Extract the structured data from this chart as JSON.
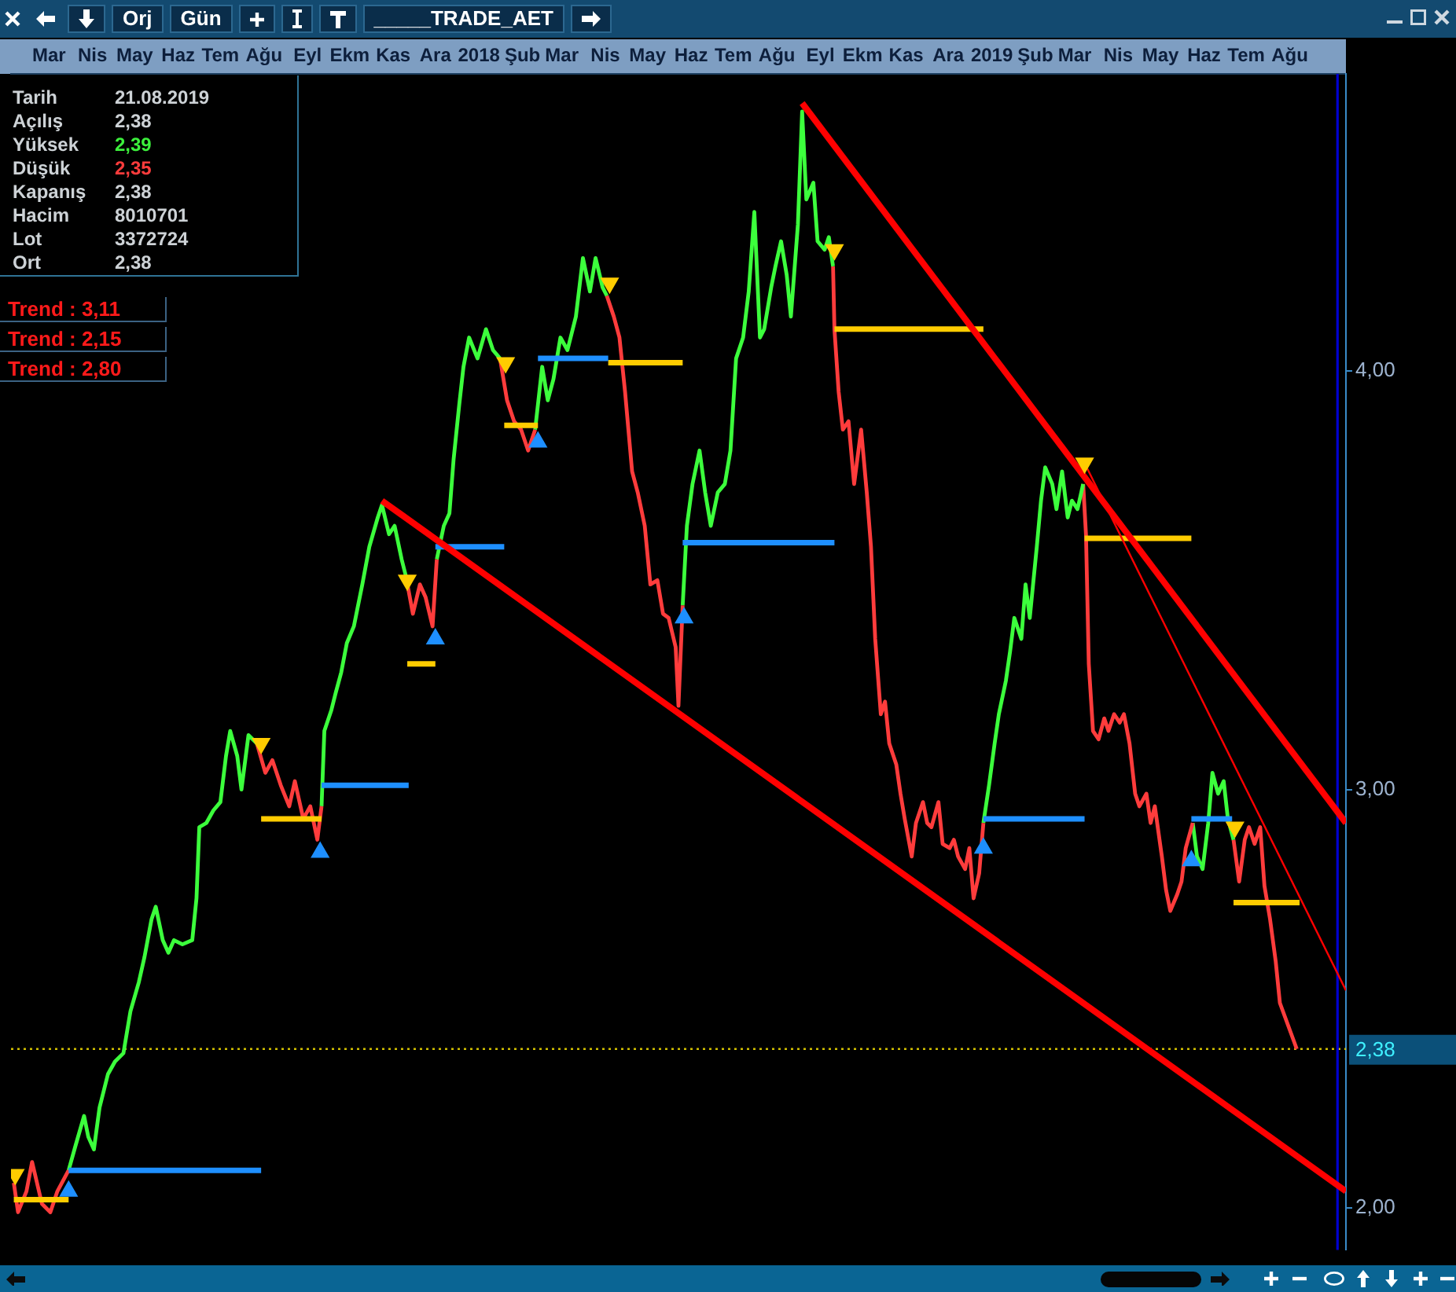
{
  "chart_data": {
    "type": "line",
    "xlim": [
      "2017-02-17",
      "2019-09-25"
    ],
    "ylim": [
      1.9,
      4.71
    ],
    "xticks": [
      {
        "value": "2017-03-16",
        "label": "Mar"
      },
      {
        "value": "2017-04-16",
        "label": "Nis"
      },
      {
        "value": "2017-05-16",
        "label": "May"
      },
      {
        "value": "2017-06-16",
        "label": "Haz"
      },
      {
        "value": "2017-07-16",
        "label": "Tem"
      },
      {
        "value": "2017-08-16",
        "label": "Ağu"
      },
      {
        "value": "2017-09-16",
        "label": "Eyl"
      },
      {
        "value": "2017-10-16",
        "label": "Ekm"
      },
      {
        "value": "2017-11-16",
        "label": "Kas"
      },
      {
        "value": "2017-12-16",
        "label": "Ara"
      },
      {
        "value": "2018-01-16",
        "label": "2018"
      },
      {
        "value": "2018-02-16",
        "label": "Şub"
      },
      {
        "value": "2018-03-16",
        "label": "Mar"
      },
      {
        "value": "2018-04-16",
        "label": "Nis"
      },
      {
        "value": "2018-05-16",
        "label": "May"
      },
      {
        "value": "2018-06-16",
        "label": "Haz"
      },
      {
        "value": "2018-07-16",
        "label": "Tem"
      },
      {
        "value": "2018-08-16",
        "label": "Ağu"
      },
      {
        "value": "2018-09-16",
        "label": "Eyl"
      },
      {
        "value": "2018-10-16",
        "label": "Ekm"
      },
      {
        "value": "2018-11-16",
        "label": "Kas"
      },
      {
        "value": "2018-12-16",
        "label": "Ara"
      },
      {
        "value": "2019-01-16",
        "label": "2019"
      },
      {
        "value": "2019-02-16",
        "label": "Şub"
      },
      {
        "value": "2019-03-16",
        "label": "Mar"
      },
      {
        "value": "2019-04-16",
        "label": "Nis"
      },
      {
        "value": "2019-05-16",
        "label": "May"
      },
      {
        "value": "2019-06-16",
        "label": "Haz"
      },
      {
        "value": "2019-07-16",
        "label": "Tem"
      },
      {
        "value": "2019-08-16",
        "label": "Ağu"
      }
    ],
    "yticks": [
      {
        "value": 2,
        "label": "2,00"
      },
      {
        "value": 3,
        "label": "3,00"
      },
      {
        "value": 4,
        "label": "4,00"
      }
    ],
    "grid": false,
    "series": [
      {
        "color": "#ff3c3c",
        "x": [
          "2017-02-19",
          "2017-02-22",
          "2017-02-28",
          "2017-03-04",
          "2017-03-11",
          "2017-03-17",
          "2017-03-22",
          "2017-03-30"
        ],
        "values": [
          2.06,
          1.99,
          2.04,
          2.11,
          2.01,
          1.99,
          2.04,
          2.09
        ]
      },
      {
        "color": "#3cff3c",
        "x": [
          "2017-03-30",
          "2017-04-04",
          "2017-04-10",
          "2017-04-13",
          "2017-04-17",
          "2017-04-21",
          "2017-04-27",
          "2017-05-02",
          "2017-05-08",
          "2017-05-13",
          "2017-05-19",
          "2017-05-23",
          "2017-05-28",
          "2017-05-31",
          "2017-06-05",
          "2017-06-09",
          "2017-06-13",
          "2017-06-19",
          "2017-06-26",
          "2017-06-29",
          "2017-07-01",
          "2017-07-06",
          "2017-07-11",
          "2017-07-16",
          "2017-07-20",
          "2017-07-23",
          "2017-07-28",
          "2017-07-31",
          "2017-08-05",
          "2017-08-08",
          "2017-08-11"
        ],
        "values": [
          2.09,
          2.15,
          2.22,
          2.17,
          2.14,
          2.24,
          2.32,
          2.35,
          2.37,
          2.47,
          2.54,
          2.6,
          2.69,
          2.72,
          2.64,
          2.61,
          2.64,
          2.63,
          2.64,
          2.74,
          2.91,
          2.92,
          2.95,
          2.97,
          3.08,
          3.14,
          3.08,
          3.0,
          3.13,
          3.12,
          3.11
        ]
      },
      {
        "color": "#ff3c3c",
        "x": [
          "2017-08-11",
          "2017-08-17",
          "2017-08-22",
          "2017-08-28",
          "2017-09-03",
          "2017-09-07",
          "2017-09-13",
          "2017-09-18",
          "2017-09-23",
          "2017-09-26"
        ],
        "values": [
          3.11,
          3.04,
          3.07,
          3.01,
          2.96,
          3.02,
          2.93,
          2.96,
          2.88,
          2.96
        ]
      },
      {
        "color": "#3cff3c",
        "x": [
          "2017-09-26",
          "2017-09-28",
          "2017-10-03",
          "2017-10-06",
          "2017-10-10",
          "2017-10-14",
          "2017-10-19",
          "2017-10-25",
          "2017-10-30",
          "2017-11-05",
          "2017-11-08",
          "2017-11-13",
          "2017-11-17",
          "2017-11-22",
          "2017-11-25"
        ],
        "values": [
          2.96,
          3.14,
          3.19,
          3.23,
          3.28,
          3.35,
          3.39,
          3.49,
          3.58,
          3.65,
          3.68,
          3.61,
          3.63,
          3.55,
          3.51
        ]
      },
      {
        "color": "#ff3c3c",
        "x": [
          "2017-11-25",
          "2017-11-30",
          "2017-12-05",
          "2017-12-09",
          "2017-12-14",
          "2017-12-17"
        ],
        "values": [
          3.51,
          3.42,
          3.49,
          3.46,
          3.39,
          3.55
        ]
      },
      {
        "color": "#3cff3c",
        "x": [
          "2017-12-17",
          "2017-12-22",
          "2017-12-26",
          "2017-12-29",
          "2018-01-02",
          "2018-01-05",
          "2018-01-09",
          "2018-01-15",
          "2018-01-21",
          "2018-01-26",
          "2018-01-31"
        ],
        "values": [
          3.55,
          3.63,
          3.66,
          3.79,
          3.92,
          4.01,
          4.08,
          4.03,
          4.1,
          4.05,
          4.03
        ]
      },
      {
        "color": "#ff3c3c",
        "x": [
          "2018-01-31",
          "2018-02-05",
          "2018-02-10",
          "2018-02-15",
          "2018-02-20",
          "2018-02-25"
        ],
        "values": [
          4.03,
          3.93,
          3.88,
          3.86,
          3.81,
          3.86
        ]
      },
      {
        "color": "#3cff3c",
        "x": [
          "2018-02-25",
          "2018-03-02",
          "2018-03-06",
          "2018-03-10",
          "2018-03-15",
          "2018-03-20",
          "2018-03-26",
          "2018-03-31",
          "2018-04-05",
          "2018-04-09",
          "2018-04-14",
          "2018-04-17"
        ],
        "values": [
          3.86,
          4.01,
          3.93,
          3.98,
          4.08,
          4.05,
          4.13,
          4.27,
          4.19,
          4.27,
          4.2,
          4.18
        ]
      },
      {
        "color": "#ff3c3c",
        "x": [
          "2018-04-17",
          "2018-04-22",
          "2018-04-26",
          "2018-04-30",
          "2018-05-05",
          "2018-05-09",
          "2018-05-14",
          "2018-05-18",
          "2018-05-23",
          "2018-05-27",
          "2018-05-31",
          "2018-06-05",
          "2018-06-07",
          "2018-06-10"
        ],
        "values": [
          4.18,
          4.13,
          4.08,
          3.95,
          3.76,
          3.71,
          3.63,
          3.49,
          3.5,
          3.42,
          3.41,
          3.34,
          3.2,
          3.44
        ]
      },
      {
        "color": "#3cff3c",
        "x": [
          "2018-06-10",
          "2018-06-13",
          "2018-06-17",
          "2018-06-22",
          "2018-06-26",
          "2018-06-30",
          "2018-07-05",
          "2018-07-10",
          "2018-07-14",
          "2018-07-18",
          "2018-07-23",
          "2018-07-27",
          "2018-07-31",
          "2018-08-04",
          "2018-08-07",
          "2018-08-12",
          "2018-08-15",
          "2018-08-19",
          "2018-08-23",
          "2018-08-26",
          "2018-08-31",
          "2018-09-03",
          "2018-09-06",
          "2018-09-11",
          "2018-09-14",
          "2018-09-19",
          "2018-09-22",
          "2018-09-25"
        ],
        "values": [
          3.44,
          3.63,
          3.73,
          3.81,
          3.71,
          3.63,
          3.71,
          3.73,
          3.81,
          4.03,
          4.08,
          4.19,
          4.38,
          4.08,
          4.1,
          4.2,
          4.25,
          4.31,
          4.23,
          4.13,
          4.35,
          4.62,
          4.41,
          4.45,
          4.31,
          4.29,
          4.32,
          4.25
        ]
      },
      {
        "color": "#ff3c3c",
        "x": [
          "2018-09-25",
          "2018-09-26",
          "2018-09-29",
          "2018-10-02",
          "2018-10-06",
          "2018-10-10",
          "2018-10-15",
          "2018-10-19",
          "2018-10-22",
          "2018-10-25",
          "2018-10-29",
          "2018-11-01",
          "2018-11-04",
          "2018-11-09",
          "2018-11-12",
          "2018-11-15",
          "2018-11-20",
          "2018-11-23",
          "2018-11-28",
          "2018-12-01",
          "2018-12-04",
          "2018-12-09",
          "2018-12-12",
          "2018-12-17",
          "2018-12-20",
          "2018-12-23",
          "2018-12-28",
          "2018-12-31",
          "2019-01-03",
          "2019-01-07",
          "2019-01-10"
        ],
        "values": [
          4.25,
          4.1,
          3.95,
          3.86,
          3.88,
          3.73,
          3.86,
          3.71,
          3.58,
          3.36,
          3.18,
          3.21,
          3.11,
          3.06,
          2.99,
          2.93,
          2.84,
          2.92,
          2.97,
          2.92,
          2.91,
          2.97,
          2.87,
          2.86,
          2.88,
          2.84,
          2.81,
          2.86,
          2.74,
          2.8,
          2.92
        ]
      },
      {
        "color": "#3cff3c",
        "x": [
          "2019-01-10",
          "2019-01-14",
          "2019-01-18",
          "2019-01-21",
          "2019-01-26",
          "2019-01-29",
          "2019-02-01",
          "2019-02-06",
          "2019-02-09",
          "2019-02-12",
          "2019-02-17",
          "2019-02-20",
          "2019-02-23",
          "2019-02-28",
          "2019-03-03",
          "2019-03-07",
          "2019-03-11",
          "2019-03-14",
          "2019-03-18",
          "2019-03-22"
        ],
        "values": [
          2.92,
          3.01,
          3.11,
          3.18,
          3.26,
          3.33,
          3.41,
          3.36,
          3.49,
          3.41,
          3.58,
          3.69,
          3.77,
          3.73,
          3.67,
          3.76,
          3.65,
          3.69,
          3.67,
          3.73
        ]
      },
      {
        "color": "#ff3c3c",
        "x": [
          "2019-03-22",
          "2019-03-24",
          "2019-03-26",
          "2019-03-29",
          "2019-04-02",
          "2019-04-06",
          "2019-04-09",
          "2019-04-13",
          "2019-04-17",
          "2019-04-20",
          "2019-04-24",
          "2019-04-28",
          "2019-05-01",
          "2019-05-06",
          "2019-05-09",
          "2019-05-12",
          "2019-05-17",
          "2019-05-20",
          "2019-05-23",
          "2019-05-28",
          "2019-05-31",
          "2019-06-03",
          "2019-06-08"
        ],
        "values": [
          3.73,
          3.61,
          3.3,
          3.14,
          3.12,
          3.17,
          3.14,
          3.18,
          3.16,
          3.18,
          3.11,
          2.99,
          2.96,
          2.99,
          2.92,
          2.96,
          2.84,
          2.76,
          2.71,
          2.75,
          2.78,
          2.86,
          2.92
        ]
      },
      {
        "color": "#3cff3c",
        "x": [
          "2019-06-08",
          "2019-06-11",
          "2019-06-15",
          "2019-06-19",
          "2019-06-22",
          "2019-06-26",
          "2019-06-30",
          "2019-07-03",
          "2019-07-07"
        ],
        "values": [
          2.92,
          2.84,
          2.81,
          2.92,
          3.04,
          2.99,
          3.02,
          2.93,
          2.88
        ]
      },
      {
        "color": "#ff3c3c",
        "x": [
          "2019-07-07",
          "2019-07-11",
          "2019-07-15",
          "2019-07-18",
          "2019-07-22",
          "2019-07-26",
          "2019-07-29",
          "2019-08-02",
          "2019-08-06",
          "2019-08-09",
          "2019-08-21"
        ],
        "values": [
          2.88,
          2.78,
          2.88,
          2.91,
          2.87,
          2.91,
          2.77,
          2.69,
          2.59,
          2.49,
          2.38
        ]
      },
      {
        "color": "#ffcc00",
        "x": [
          "2017-02-19",
          "2017-03-30"
        ],
        "values": [
          2.02,
          2.02
        ]
      },
      {
        "color": "#1e8fff",
        "x": [
          "2017-03-30",
          "2017-08-14"
        ],
        "values": [
          2.09,
          2.09
        ]
      },
      {
        "color": "#ffcc00",
        "x": [
          "2017-08-14",
          "2017-09-26"
        ],
        "values": [
          2.93,
          2.93
        ]
      },
      {
        "color": "#1e8fff",
        "x": [
          "2017-09-26",
          "2017-11-27"
        ],
        "values": [
          3.01,
          3.01
        ]
      },
      {
        "color": "#ffcc00",
        "x": [
          "2017-11-26",
          "2017-12-16"
        ],
        "values": [
          3.3,
          3.3
        ]
      },
      {
        "color": "#1e8fff",
        "x": [
          "2017-12-16",
          "2018-02-03"
        ],
        "values": [
          3.58,
          3.58
        ]
      },
      {
        "color": "#ffcc00",
        "x": [
          "2018-02-03",
          "2018-02-27"
        ],
        "values": [
          3.87,
          3.87
        ]
      },
      {
        "color": "#1e8fff",
        "x": [
          "2018-02-27",
          "2018-04-18"
        ],
        "values": [
          4.03,
          4.03
        ]
      },
      {
        "color": "#ffcc00",
        "x": [
          "2018-04-18",
          "2018-06-10"
        ],
        "values": [
          4.02,
          4.02
        ]
      },
      {
        "color": "#1e8fff",
        "x": [
          "2018-06-10",
          "2018-09-26"
        ],
        "values": [
          3.59,
          3.59
        ]
      },
      {
        "color": "#ffcc00",
        "x": [
          "2018-09-26",
          "2019-01-10"
        ],
        "values": [
          4.1,
          4.1
        ]
      },
      {
        "color": "#1e8fff",
        "x": [
          "2019-01-10",
          "2019-03-23"
        ],
        "values": [
          2.93,
          2.93
        ]
      },
      {
        "color": "#ffcc00",
        "x": [
          "2019-03-23",
          "2019-06-07"
        ],
        "values": [
          3.6,
          3.6
        ]
      },
      {
        "color": "#1e8fff",
        "x": [
          "2019-06-07",
          "2019-07-06"
        ],
        "values": [
          2.93,
          2.93
        ]
      },
      {
        "color": "#ffcc00",
        "x": [
          "2019-07-07",
          "2019-08-23"
        ],
        "values": [
          2.73,
          2.73
        ]
      },
      {
        "color": "#ff0000",
        "x": [
          "2018-09-03",
          "2019-09-25"
        ],
        "values": [
          4.64,
          2.92
        ]
      },
      {
        "color": "#ff0000",
        "x": [
          "2017-11-08",
          "2019-09-25"
        ],
        "values": [
          3.69,
          2.04
        ]
      },
      {
        "color": "#ff0000",
        "x": [
          "2019-03-23",
          "2019-09-25"
        ],
        "values": [
          3.78,
          2.52
        ]
      },
      {
        "type": "scatter",
        "marker": "triangle",
        "color": "#1e8fff",
        "x": [
          "2017-03-30",
          "2017-09-25",
          "2017-12-16",
          "2018-02-27",
          "2018-06-11",
          "2019-01-10",
          "2019-06-07"
        ],
        "values": [
          2.04,
          2.85,
          3.36,
          3.83,
          3.41,
          2.86,
          2.83
        ]
      },
      {
        "type": "scatter",
        "marker": "triangle-down",
        "color": "#ffcc00",
        "x": [
          "2017-02-20",
          "2017-08-14",
          "2017-11-26",
          "2018-02-04",
          "2018-04-19",
          "2018-09-26",
          "2019-03-23",
          "2019-07-08"
        ],
        "values": [
          2.08,
          3.11,
          3.5,
          4.02,
          4.21,
          4.29,
          3.78,
          2.91
        ]
      }
    ],
    "ref_lines": [
      {
        "axis": "y",
        "value": 2.38,
        "label": "2,38",
        "color": "#d2c000",
        "line_style": "dotted"
      },
      {
        "axis": "x",
        "value": "2019-09-19",
        "color": "#0000d0"
      }
    ],
    "annotations": [
      "Orj",
      "Gün",
      "_____TRADE_AET",
      "Tarih",
      "21.08.2019",
      "Açılış",
      "2,38",
      "Yüksek",
      "2,39",
      "Düşük",
      "2,35",
      "Kapanış",
      "2,38",
      "Hacim",
      "8010701",
      "Lot",
      "3372724",
      "Ort",
      "2,38",
      "Trend : 3,11",
      "Trend : 2,15",
      "Trend : 2,80"
    ]
  }
}
